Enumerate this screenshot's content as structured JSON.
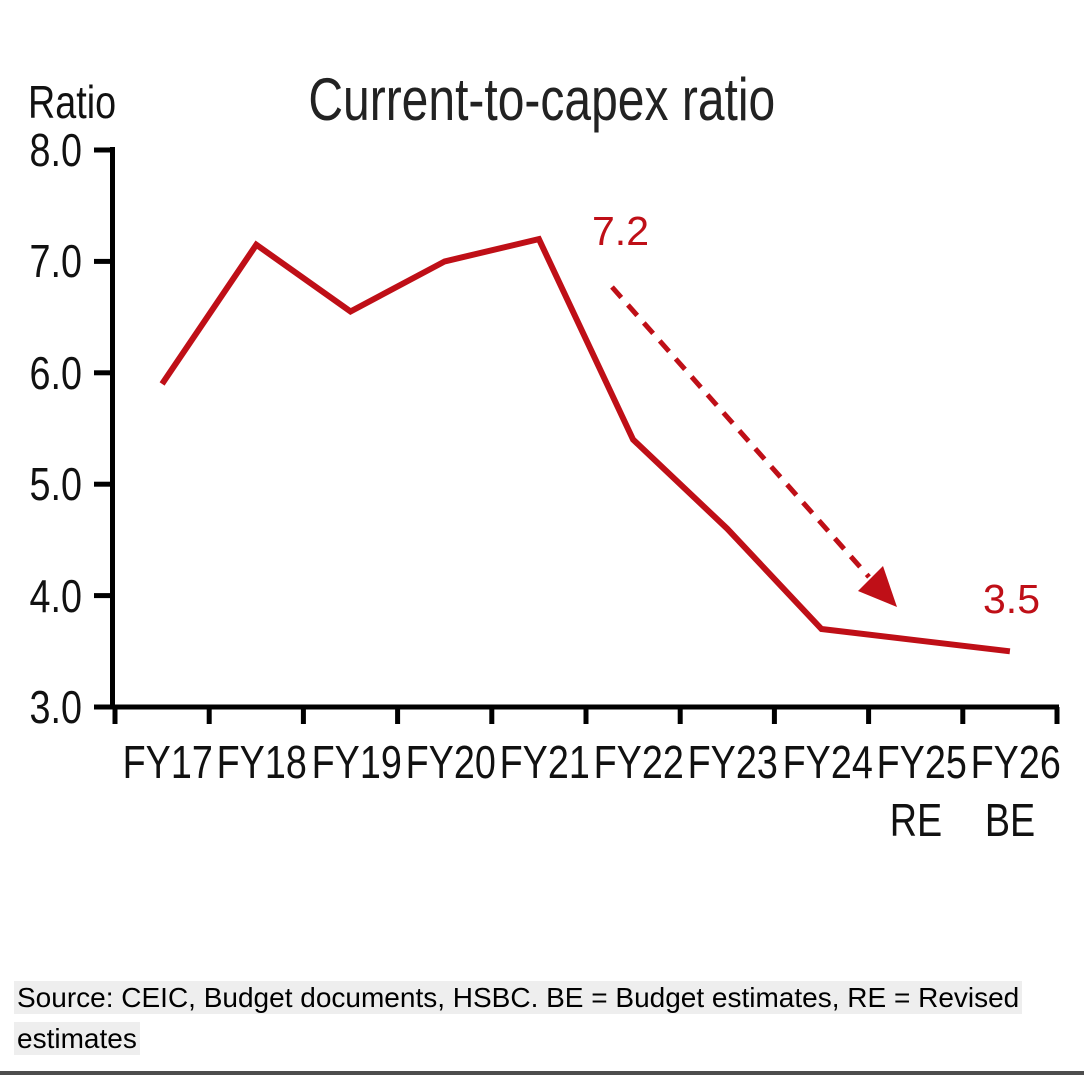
{
  "header": {
    "title": "Current-to-capex ratio",
    "axis_unit_label": "Ratio"
  },
  "chart_data": {
    "type": "line",
    "title": "Current-to-capex ratio",
    "ylabel": "Ratio",
    "xlabel": "",
    "categories": [
      "FY17",
      "FY18",
      "FY19",
      "FY20",
      "FY21",
      "FY22",
      "FY23",
      "FY24",
      "FY25 RE",
      "FY26 BE"
    ],
    "x_tick_labels": [
      {
        "label": "FY17",
        "sub": ""
      },
      {
        "label": "FY18",
        "sub": ""
      },
      {
        "label": "FY19",
        "sub": ""
      },
      {
        "label": "FY20",
        "sub": ""
      },
      {
        "label": "FY21",
        "sub": ""
      },
      {
        "label": "FY22",
        "sub": ""
      },
      {
        "label": "FY23",
        "sub": ""
      },
      {
        "label": "FY24",
        "sub": ""
      },
      {
        "label": "FY25",
        "sub": "RE"
      },
      {
        "label": "FY26",
        "sub": "BE"
      }
    ],
    "series": [
      {
        "name": "Current-to-capex ratio",
        "color": "#bf0f17",
        "values": [
          5.9,
          7.15,
          6.55,
          7.0,
          7.2,
          5.4,
          4.6,
          3.7,
          3.6,
          3.5
        ]
      }
    ],
    "ylim": [
      3.0,
      8.0
    ],
    "yticks": [
      8.0,
      7.0,
      6.0,
      5.0,
      4.0,
      3.0
    ],
    "grid": false,
    "legend": "none",
    "annotations": [
      {
        "text": "7.2",
        "target": "FY21"
      },
      {
        "text": "3.5",
        "target": "FY26"
      }
    ],
    "arrow_annotation": {
      "style": "dashed",
      "color": "#bf0f17",
      "from": "7.2 (FY21)",
      "to": "3.5 level (FY24-FY25)"
    }
  },
  "source_note": {
    "line1": "Source: CEIC, Budget documents, HSBC. BE = Budget estimates, RE = Revised",
    "line2": "estimates"
  },
  "colors": {
    "series_red": "#bf0f17",
    "axis_black": "#000000",
    "tick_label_text": "#111111",
    "title_text": "#222222",
    "source_background": "#eeeeee",
    "bottom_rule": "#4d4d4d"
  }
}
